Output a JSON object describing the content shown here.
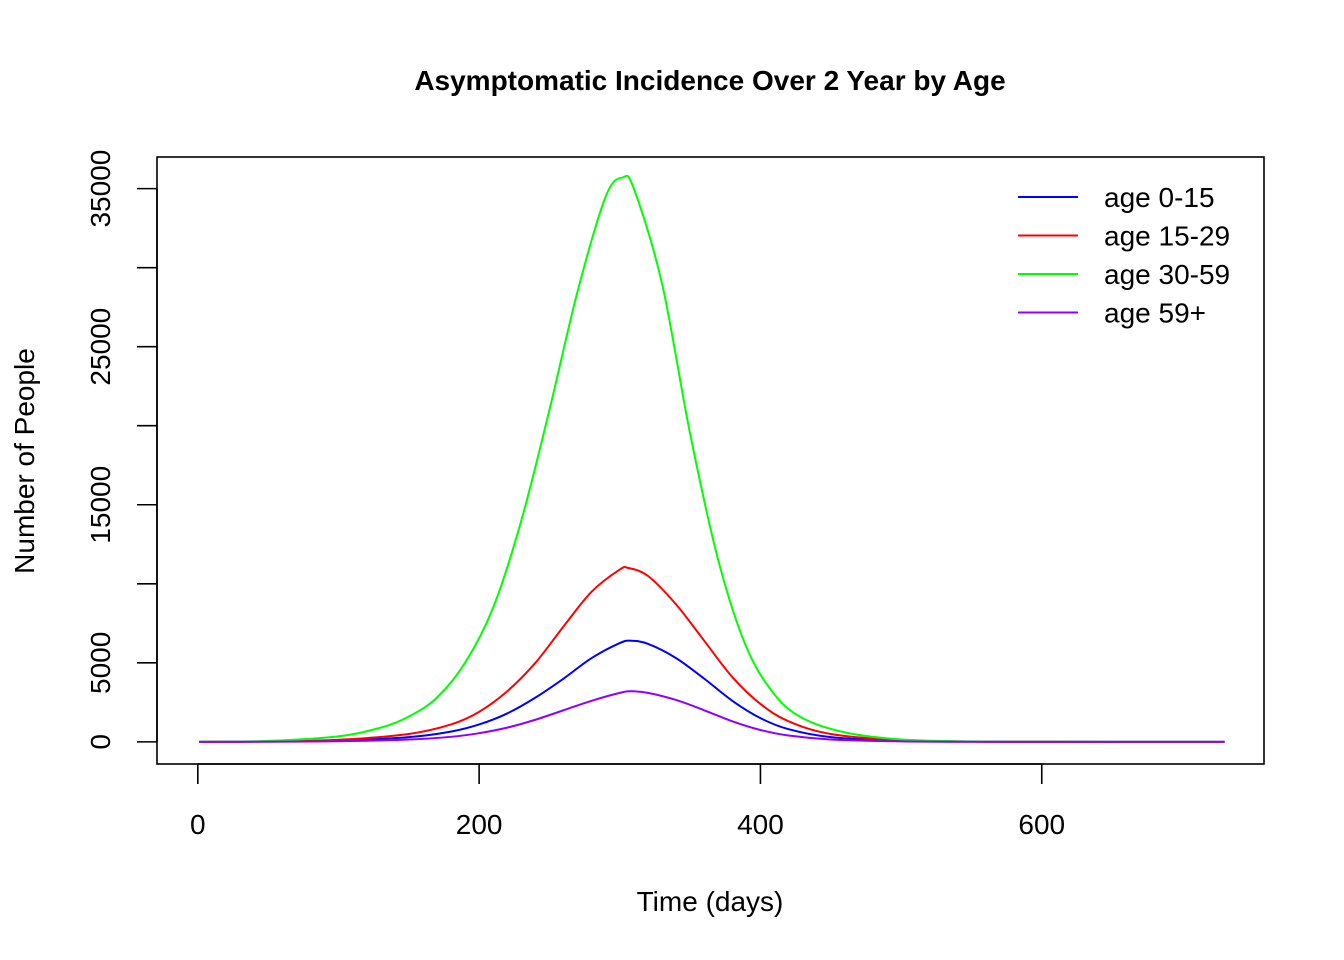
{
  "chart_data": {
    "type": "line",
    "title": "Asymptomatic Incidence Over 2 Year by Age",
    "xlabel": "Time (days)",
    "ylabel": "Number of People",
    "xlim": [
      -29,
      758
    ],
    "ylim": [
      -1400,
      37000
    ],
    "xticks": [
      0,
      200,
      400,
      600
    ],
    "xtick_labels": [
      "0",
      "200",
      "400",
      "600"
    ],
    "yticks": [
      0,
      5000,
      10000,
      15000,
      20000,
      25000,
      30000,
      35000
    ],
    "ytick_labels": [
      "0",
      "5000",
      "",
      "15000",
      "",
      "25000",
      "",
      "35000"
    ],
    "grid": false,
    "legend_position": "top-right",
    "series": [
      {
        "name": "age 0-15",
        "color": "#0000ff",
        "x": [
          1,
          50,
          100,
          150,
          180,
          200,
          220,
          240,
          260,
          280,
          300,
          308,
          320,
          340,
          360,
          380,
          400,
          420,
          450,
          500,
          550,
          600,
          650,
          700,
          730
        ],
        "y": [
          0,
          20,
          80,
          300,
          650,
          1100,
          1800,
          2800,
          4000,
          5300,
          6250,
          6400,
          6200,
          5300,
          4000,
          2600,
          1500,
          800,
          300,
          60,
          15,
          5,
          0,
          0,
          0
        ]
      },
      {
        "name": "age 15-29",
        "color": "#ff0000",
        "x": [
          1,
          50,
          100,
          150,
          180,
          200,
          220,
          240,
          260,
          280,
          300,
          306,
          320,
          340,
          360,
          380,
          400,
          420,
          450,
          500,
          550,
          600,
          650,
          700,
          730
        ],
        "y": [
          0,
          30,
          130,
          500,
          1100,
          1900,
          3200,
          5000,
          7300,
          9500,
          10900,
          11000,
          10500,
          8700,
          6400,
          4100,
          2400,
          1300,
          500,
          100,
          25,
          5,
          0,
          0,
          0
        ]
      },
      {
        "name": "age 30-59",
        "color": "#00ff00",
        "x": [
          1,
          50,
          100,
          130,
          150,
          170,
          190,
          210,
          230,
          250,
          270,
          290,
          302,
          310,
          330,
          350,
          370,
          390,
          410,
          430,
          460,
          500,
          550,
          600,
          650,
          700,
          730
        ],
        "y": [
          0,
          60,
          350,
          900,
          1600,
          2800,
          5000,
          8500,
          14000,
          21000,
          28500,
          34500,
          35700,
          35000,
          29000,
          19500,
          11500,
          6000,
          3000,
          1500,
          600,
          150,
          30,
          5,
          0,
          0,
          0
        ]
      },
      {
        "name": "age 59+",
        "color": "#8f00ff",
        "x": [
          1,
          50,
          100,
          150,
          180,
          200,
          220,
          240,
          260,
          280,
          300,
          308,
          320,
          340,
          360,
          380,
          400,
          420,
          450,
          500,
          550,
          600,
          650,
          700,
          730
        ],
        "y": [
          0,
          10,
          40,
          150,
          320,
          550,
          900,
          1400,
          2000,
          2600,
          3100,
          3200,
          3100,
          2650,
          2000,
          1300,
          750,
          400,
          150,
          30,
          5,
          0,
          0,
          0,
          0
        ]
      }
    ]
  }
}
